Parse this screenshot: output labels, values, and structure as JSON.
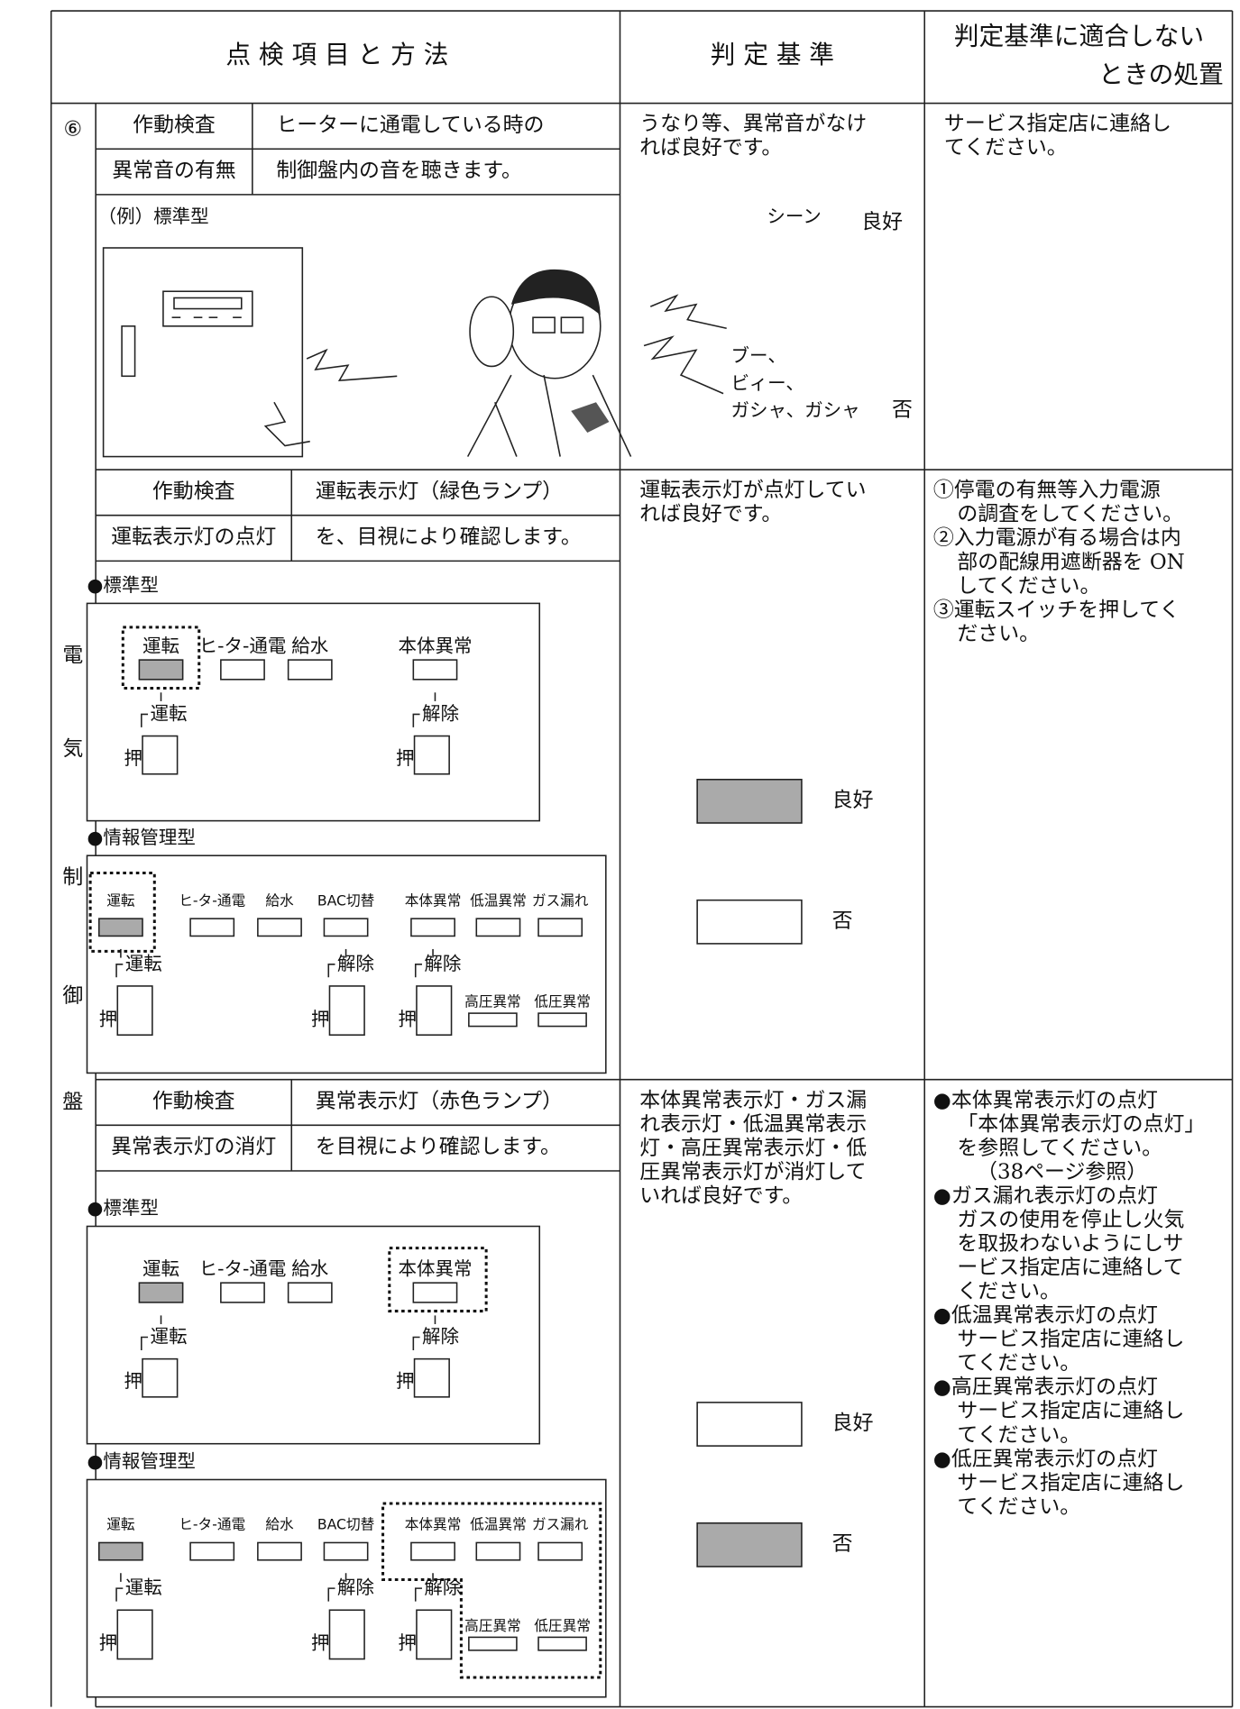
{
  "header": {
    "items": "点 検 項 目 と 方 法",
    "criteria": "判 定 基 準",
    "action": [
      "判定基準に適合しない",
      "ときの処置"
    ]
  },
  "side": {
    "number": "⑥",
    "label": [
      "電",
      "気",
      "制",
      "御",
      "盤"
    ]
  },
  "rows": [
    {
      "check": "作動検査",
      "item": "異常音の有無",
      "method": [
        "ヒーターに通電している時の",
        "制御盤内の音を聴きます。"
      ],
      "example": "（例）標準型",
      "criteria": [
        "うなり等、異常音がなけ",
        "れば良好です。"
      ],
      "good_sound": "シーン",
      "good": "良好",
      "bad_sounds": [
        "ブー、",
        "ビィー、",
        "ガシャ、ガシャ"
      ],
      "bad": "否",
      "action": [
        "サービス指定店に連絡し",
        "てください。"
      ]
    },
    {
      "check": "作動検査",
      "item": "運転表示灯の点灯",
      "method": [
        "運転表示灯（緑色ランプ）",
        "を、目視により確認します。"
      ],
      "criteria": [
        "運転表示灯が点灯してい",
        "れば良好です。"
      ],
      "good": "良好",
      "bad": "否",
      "panels": [
        {
          "title": "●標準型",
          "lamps": [
            "運転",
            "ヒ-タ-通電",
            "給水",
            "本体異常"
          ],
          "buttons": [
            {
              "label": "運転",
              "push": "押"
            },
            {
              "label": "解除",
              "push": "押"
            }
          ]
        },
        {
          "title": "●情報管理型",
          "lamps": [
            "運転",
            "ヒ-タ-通電",
            "給水",
            "BAC切替",
            "本体異常",
            "低温異常",
            "ガス漏れ"
          ],
          "buttons": [
            {
              "label": "運転",
              "push": "押"
            },
            {
              "label": "解除",
              "push": "押"
            },
            {
              "label": "解除",
              "push": "押"
            }
          ],
          "extra_lamps": [
            "高圧異常",
            "低圧異常"
          ]
        }
      ],
      "action": [
        [
          "①停電の有無等入力電源",
          "の調査をしてください。"
        ],
        [
          "②入力電源が有る場合は内",
          "部の配線用遮断器を ON",
          "してください。"
        ],
        [
          "③運転スイッチを押してく",
          "ださい。"
        ]
      ]
    },
    {
      "check": "作動検査",
      "item": "異常表示灯の消灯",
      "method": [
        "異常表示灯（赤色ランプ）",
        "を目視により確認します。"
      ],
      "criteria": [
        "本体異常表示灯・ガス漏",
        "れ表示灯・低温異常表示",
        "灯・高圧異常表示灯・低",
        "圧異常表示灯が消灯して",
        "いれば良好です。"
      ],
      "good": "良好",
      "bad": "否",
      "panels": [
        {
          "title": "●標準型",
          "lamps": [
            "運転",
            "ヒ-タ-通電",
            "給水",
            "本体異常"
          ],
          "buttons": [
            {
              "label": "運転",
              "push": "押"
            },
            {
              "label": "解除",
              "push": "押"
            }
          ]
        },
        {
          "title": "●情報管理型",
          "lamps": [
            "運転",
            "ヒ-タ-通電",
            "給水",
            "BAC切替",
            "本体異常",
            "低温異常",
            "ガス漏れ"
          ],
          "buttons": [
            {
              "label": "運転",
              "push": "押"
            },
            {
              "label": "解除",
              "push": "押"
            },
            {
              "label": "解除",
              "push": "押"
            }
          ],
          "extra_lamps": [
            "高圧異常",
            "低圧異常"
          ]
        }
      ],
      "action": [
        [
          "●本体異常表示灯の点灯",
          "「本体異常表示灯の点灯」",
          "を参照してください。",
          "（38ページ参照）"
        ],
        [
          "●ガス漏れ表示灯の点灯",
          "ガスの使用を停止し火気",
          "を取扱わないようにしサ",
          "ービス指定店に連絡して",
          "ください。"
        ],
        [
          "●低温異常表示灯の点灯",
          "サービス指定店に連絡し",
          "てください。"
        ],
        [
          "●高圧異常表示灯の点灯",
          "サービス指定店に連絡し",
          "てください。"
        ],
        [
          "●低圧異常表示灯の点灯",
          "サービス指定店に連絡し",
          "てください。"
        ]
      ]
    }
  ]
}
